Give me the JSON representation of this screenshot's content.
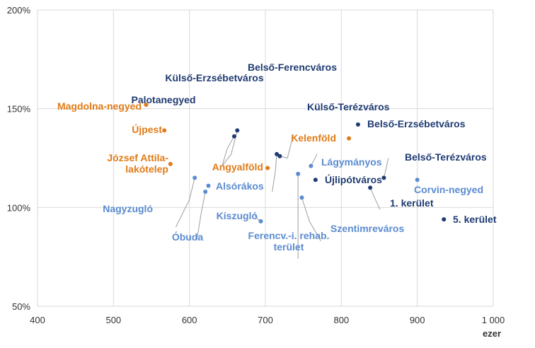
{
  "chart_data": {
    "type": "scatter",
    "title": "",
    "xlabel": "",
    "ylabel": "",
    "x_unit": "ezer",
    "xlim": [
      400,
      1000
    ],
    "ylim": [
      50,
      200
    ],
    "x_ticks": [
      "400",
      "500",
      "600",
      "700",
      "800",
      "900",
      "1 000"
    ],
    "y_ticks": [
      "50%",
      "100%",
      "150%",
      "200%"
    ],
    "grid": "vertical and horizontal",
    "series": [
      {
        "color": "#1f3b73",
        "points": [
          {
            "label": "Belső-Ferencváros",
            "x": 715,
            "y": 127
          },
          {
            "label": "Külső-Erzsébetváros",
            "x": 663,
            "y": 139
          },
          {
            "label": "Palotanegyed",
            "x": 659,
            "y": 136
          },
          {
            "label": "Külső-Terézváros",
            "x": 719,
            "y": 126
          },
          {
            "label": "Belső-Erzsébetváros",
            "x": 822,
            "y": 142
          },
          {
            "label": "Belső-Terézváros",
            "x": 856,
            "y": 115
          },
          {
            "label": "Újlipótváros",
            "x": 766,
            "y": 114
          },
          {
            "label": "1. kerület",
            "x": 838,
            "y": 110
          },
          {
            "label": "5. kerület",
            "x": 935,
            "y": 94
          }
        ]
      },
      {
        "color": "#e07b17",
        "points": [
          {
            "label": "Magdolna-negyed",
            "x": 543,
            "y": 152
          },
          {
            "label": "Újpest",
            "x": 567,
            "y": 139
          },
          {
            "label": "József Attila-\nlakótelep",
            "x": 575,
            "y": 122
          },
          {
            "label": "Angyalföld",
            "x": 703,
            "y": 120
          },
          {
            "label": "Kelenföld",
            "x": 810,
            "y": 135
          }
        ]
      },
      {
        "color": "#5b8bd0",
        "points": [
          {
            "label": "Lágymányos",
            "x": 760,
            "y": 121
          },
          {
            "label": "Corvin-negyed",
            "x": 900,
            "y": 114
          },
          {
            "label": "Alsórákos",
            "x": 625,
            "y": 111
          },
          {
            "label": "Nagyzugló",
            "x": 607,
            "y": 115
          },
          {
            "label": "Óbuda",
            "x": 621,
            "y": 108
          },
          {
            "label": "Kiszugló",
            "x": 694,
            "y": 93
          },
          {
            "label": "Ferencv.-i. rehab.\nterület",
            "x": 743,
            "y": 117
          },
          {
            "label": "Szentimreváros",
            "x": 748,
            "y": 105
          }
        ]
      }
    ]
  }
}
